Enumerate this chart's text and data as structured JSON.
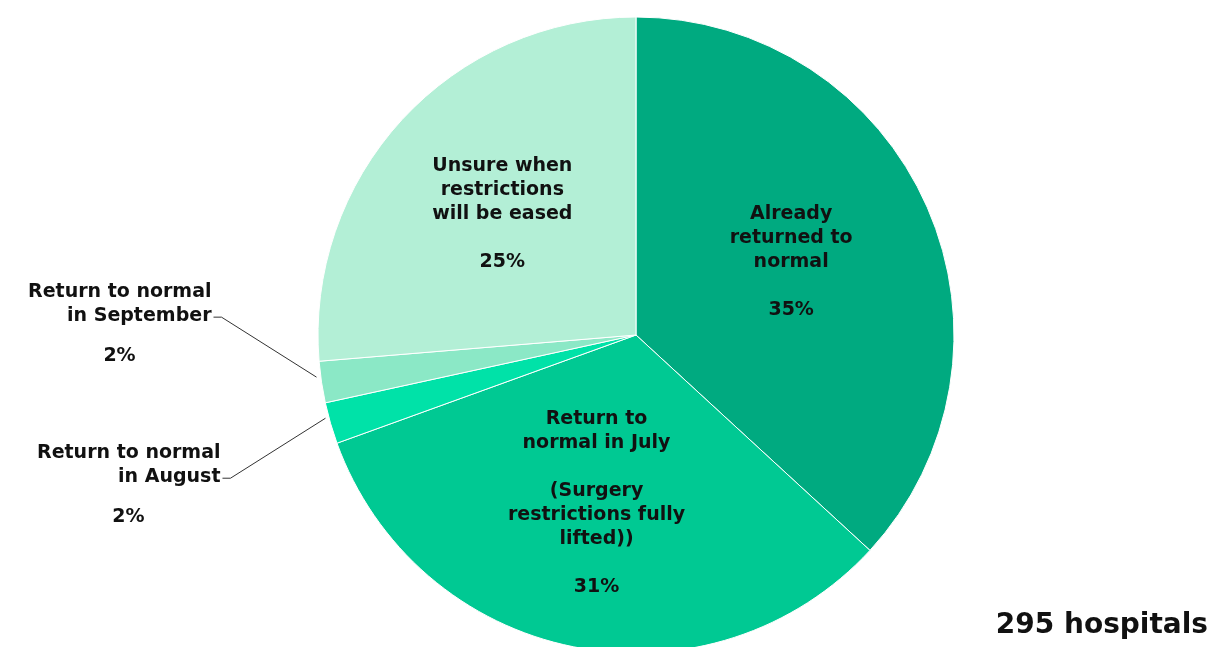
{
  "chart_data": {
    "type": "pie",
    "categories": [
      "Already\nreturned to\nnormal",
      "Return to\nnormal in July\n\n(Surgery\nrestrictions fully\nlifted))",
      "Return to normal\nin August",
      "Return to normal\nin September",
      "Unsure when\nrestrictions\nwill be eased"
    ],
    "values": [
      35,
      31,
      2,
      2,
      25
    ],
    "value_labels": [
      "35%",
      "31%",
      "2%",
      "2%",
      "25%"
    ],
    "colors": [
      "#00aa80",
      "#00c993",
      "#00e2a8",
      "#8be8c6",
      "#b3efd6"
    ],
    "annotations": [
      "295 hospitals"
    ]
  }
}
